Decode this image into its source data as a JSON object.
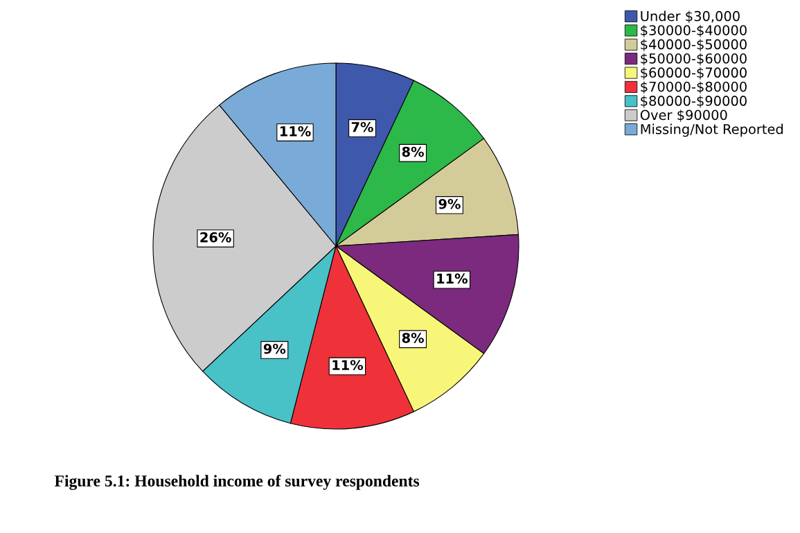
{
  "chart_data": {
    "type": "pie",
    "title": "Figure 5.1: Household income of survey respondents",
    "categories": [
      "Under $30,000",
      "$30000-$40000",
      "$40000-$50000",
      "$50000-$60000",
      "$60000-$70000",
      "$70000-$80000",
      "$80000-$90000",
      "Over $90000",
      "Missing/Not Reported"
    ],
    "values": [
      7,
      8,
      9,
      11,
      8,
      11,
      9,
      26,
      11
    ],
    "colors": [
      "#3e58ac",
      "#2db84a",
      "#d4cc98",
      "#7b2a7e",
      "#f8f679",
      "#ef3239",
      "#48c1c7",
      "#cccccc",
      "#7aaad7"
    ],
    "value_labels": [
      "7%",
      "8%",
      "9%",
      "11%",
      "8%",
      "11%",
      "9%",
      "26%",
      "11%"
    ],
    "legend": "top right"
  }
}
